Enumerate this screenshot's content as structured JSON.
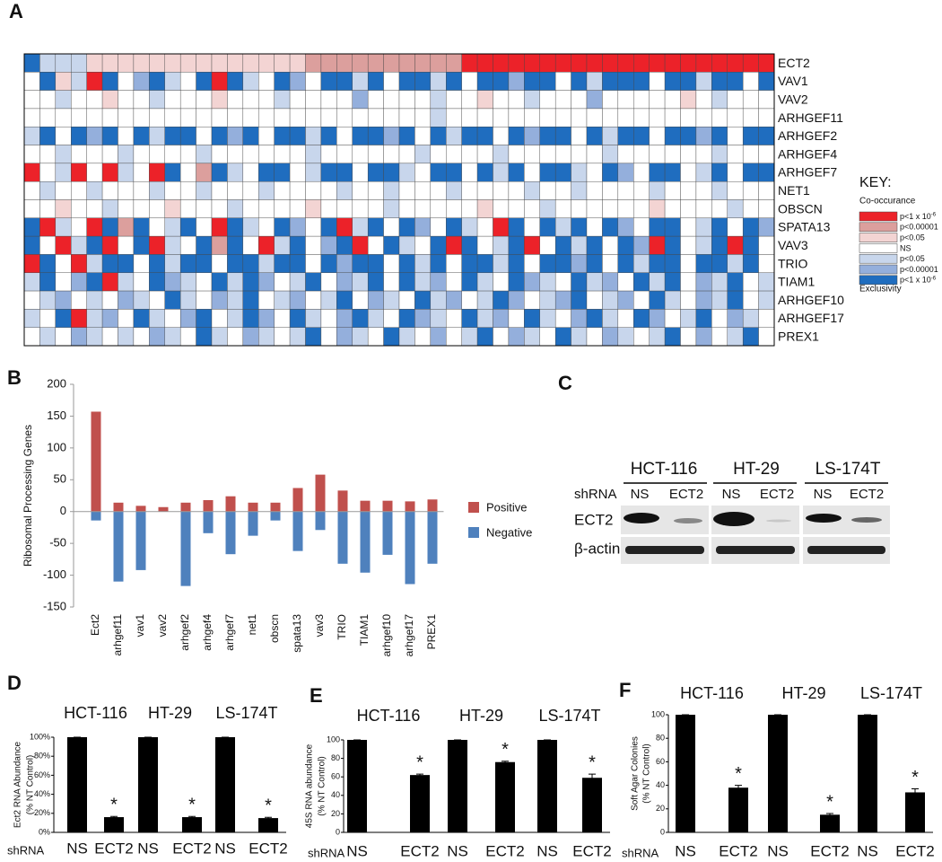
{
  "chart_data": [
    {
      "type": "heatmap",
      "panel_label": "A",
      "rows": [
        "ECT2",
        "VAV1",
        "VAV2",
        "ARHGEF11",
        "ARHGEF2",
        "ARHGEF4",
        "ARHGEF7",
        "NET1",
        "OBSCN",
        "SPATA13",
        "VAV3",
        "TRIO",
        "TIAM1",
        "ARHGEF10",
        "ARHGEF17",
        "PREX1"
      ],
      "values": [
        [
          -3,
          -1,
          -1,
          -1,
          1,
          1,
          1,
          1,
          1,
          1,
          1,
          1,
          1,
          1,
          1,
          1,
          1,
          1,
          2,
          2,
          2,
          2,
          2,
          2,
          2,
          2,
          2,
          2,
          3,
          3,
          3,
          3,
          3,
          3,
          3,
          3,
          3,
          3,
          3,
          3,
          3,
          3,
          3,
          3,
          3,
          3,
          3,
          3
        ],
        [
          0,
          -3,
          1,
          -1,
          3,
          -3,
          0,
          -2,
          -3,
          -1,
          0,
          -3,
          3,
          -3,
          -1,
          0,
          -3,
          -2,
          0,
          -3,
          -3,
          -1,
          -3,
          0,
          -3,
          -3,
          -1,
          -3,
          0,
          -3,
          -3,
          -2,
          -3,
          -3,
          0,
          -3,
          -1,
          -3,
          -3,
          -3,
          0,
          -3,
          -3,
          -1,
          -3,
          -3,
          0,
          -3
        ],
        [
          0,
          0,
          -1,
          0,
          0,
          1,
          0,
          0,
          -1,
          0,
          0,
          0,
          1,
          0,
          0,
          0,
          -1,
          0,
          0,
          0,
          0,
          -2,
          0,
          0,
          0,
          0,
          -1,
          0,
          0,
          1,
          0,
          0,
          -1,
          0,
          0,
          0,
          -2,
          0,
          0,
          0,
          0,
          0,
          1,
          0,
          -1,
          0,
          0,
          0
        ],
        [
          0,
          0,
          0,
          0,
          0,
          0,
          0,
          0,
          0,
          0,
          0,
          0,
          0,
          0,
          0,
          0,
          0,
          0,
          0,
          0,
          0,
          0,
          0,
          0,
          0,
          0,
          -1,
          0,
          0,
          0,
          0,
          0,
          0,
          0,
          0,
          0,
          0,
          0,
          0,
          0,
          0,
          0,
          0,
          0,
          0,
          0,
          0,
          0
        ],
        [
          -1,
          -3,
          0,
          -3,
          -2,
          -3,
          0,
          -3,
          -1,
          -3,
          -3,
          0,
          -3,
          -2,
          -3,
          0,
          -3,
          -3,
          -1,
          -3,
          0,
          -3,
          -3,
          -2,
          -3,
          0,
          -3,
          -1,
          -3,
          -3,
          0,
          -3,
          -2,
          -3,
          -3,
          0,
          -3,
          -1,
          -3,
          -3,
          0,
          -3,
          -3,
          -2,
          -3,
          0,
          -3,
          -3
        ],
        [
          0,
          0,
          -1,
          0,
          0,
          0,
          -1,
          0,
          0,
          0,
          0,
          -1,
          0,
          0,
          0,
          0,
          0,
          0,
          -1,
          0,
          0,
          0,
          0,
          0,
          0,
          -1,
          0,
          0,
          0,
          0,
          -1,
          0,
          0,
          0,
          0,
          0,
          0,
          -1,
          0,
          0,
          0,
          0,
          0,
          0,
          -1,
          0,
          0,
          0
        ],
        [
          3,
          0,
          -1,
          3,
          0,
          3,
          -1,
          0,
          3,
          -3,
          0,
          2,
          -3,
          -1,
          0,
          -3,
          -3,
          0,
          -1,
          -3,
          -3,
          0,
          -3,
          -3,
          -1,
          0,
          -3,
          -3,
          0,
          -3,
          -1,
          -3,
          0,
          -3,
          -3,
          -1,
          0,
          -3,
          -2,
          0,
          -3,
          -3,
          0,
          -1,
          -3,
          0,
          -3,
          -3
        ],
        [
          0,
          -1,
          0,
          0,
          -1,
          0,
          0,
          0,
          -1,
          0,
          0,
          -1,
          0,
          0,
          0,
          -1,
          0,
          0,
          0,
          0,
          -1,
          0,
          0,
          -1,
          0,
          0,
          0,
          -1,
          0,
          0,
          0,
          0,
          -1,
          0,
          0,
          -1,
          0,
          0,
          0,
          0,
          -1,
          0,
          0,
          0,
          -1,
          0,
          0,
          0
        ],
        [
          0,
          0,
          1,
          0,
          0,
          -1,
          0,
          0,
          0,
          1,
          0,
          0,
          0,
          -1,
          0,
          0,
          0,
          0,
          1,
          0,
          0,
          0,
          0,
          -1,
          0,
          0,
          0,
          0,
          0,
          1,
          0,
          0,
          0,
          -1,
          0,
          0,
          0,
          0,
          0,
          0,
          1,
          0,
          0,
          0,
          0,
          -1,
          0,
          0
        ],
        [
          -3,
          3,
          -1,
          0,
          3,
          -3,
          2,
          -3,
          0,
          -1,
          -3,
          0,
          3,
          -3,
          -1,
          0,
          -3,
          -2,
          0,
          -3,
          3,
          -1,
          -3,
          0,
          -3,
          -2,
          0,
          -3,
          -1,
          0,
          3,
          -3,
          0,
          -3,
          -1,
          -3,
          0,
          -3,
          -2,
          0,
          -3,
          -3,
          0,
          -1,
          -3,
          0,
          -3,
          -2
        ],
        [
          -3,
          0,
          3,
          -1,
          -3,
          3,
          0,
          -3,
          3,
          -1,
          0,
          -3,
          2,
          -3,
          0,
          3,
          -1,
          -3,
          0,
          -2,
          -3,
          3,
          0,
          -3,
          -1,
          0,
          -3,
          3,
          -3,
          0,
          -1,
          -3,
          3,
          0,
          -3,
          -1,
          -3,
          0,
          -3,
          -2,
          3,
          -3,
          0,
          -1,
          -3,
          3,
          -3,
          0
        ],
        [
          3,
          -3,
          0,
          3,
          -1,
          -3,
          -3,
          0,
          -3,
          -1,
          -3,
          -3,
          0,
          -3,
          -3,
          -1,
          -3,
          -3,
          0,
          -3,
          -2,
          -3,
          -3,
          0,
          -3,
          -1,
          -3,
          0,
          -3,
          -3,
          -1,
          -3,
          0,
          -3,
          -3,
          -2,
          -3,
          0,
          -3,
          -1,
          -3,
          -3,
          0,
          -3,
          -3,
          -1,
          -3,
          0
        ],
        [
          -1,
          -3,
          0,
          -2,
          -3,
          3,
          -1,
          0,
          -3,
          -2,
          -1,
          0,
          -3,
          -1,
          -3,
          -2,
          0,
          -1,
          -3,
          0,
          -2,
          -1,
          -3,
          0,
          -3,
          -1,
          -2,
          0,
          -3,
          -1,
          0,
          -3,
          -2,
          -1,
          0,
          -3,
          -1,
          -2,
          0,
          -3,
          -1,
          -3,
          0,
          -2,
          -1,
          -3,
          0,
          -1
        ],
        [
          0,
          -1,
          -2,
          0,
          -1,
          0,
          -2,
          -1,
          0,
          -3,
          -1,
          0,
          -2,
          -1,
          -3,
          0,
          -1,
          -2,
          0,
          -1,
          -3,
          0,
          -2,
          -1,
          0,
          -3,
          -1,
          -2,
          0,
          -1,
          -3,
          -2,
          0,
          -1,
          -2,
          -3,
          0,
          -1,
          -2,
          0,
          -3,
          -1,
          0,
          -2,
          -1,
          -3,
          0,
          -1
        ],
        [
          -1,
          0,
          -3,
          3,
          -1,
          -2,
          0,
          -3,
          -1,
          0,
          -2,
          -3,
          0,
          -1,
          -3,
          -2,
          0,
          -3,
          -1,
          0,
          -2,
          -3,
          -1,
          0,
          -3,
          -2,
          -1,
          0,
          -3,
          -1,
          -2,
          0,
          -3,
          -1,
          0,
          -2,
          -3,
          -1,
          0,
          -3,
          -2,
          0,
          -1,
          -3,
          0,
          -2,
          -1,
          0
        ],
        [
          0,
          -1,
          0,
          -2,
          -1,
          0,
          -1,
          0,
          -2,
          -1,
          0,
          -3,
          -1,
          0,
          -2,
          -1,
          0,
          -1,
          -3,
          0,
          -2,
          -1,
          0,
          -3,
          -1,
          0,
          -2,
          0,
          -1,
          -3,
          0,
          -2,
          -1,
          0,
          -3,
          -1,
          0,
          -2,
          -1,
          0,
          -1,
          -3,
          0,
          -2,
          0,
          -1,
          -3,
          0
        ]
      ],
      "key": {
        "title": "KEY:",
        "top_label": "Co-occurance",
        "bottom_label": "Exclusivity",
        "levels": [
          {
            "value": 3,
            "label": "p<1 x 10",
            "sup": "-6",
            "color": "#ec2229"
          },
          {
            "value": 2,
            "label": "p<0.00001",
            "color": "#dc9f9d"
          },
          {
            "value": 1,
            "label": "p<0.05",
            "color": "#f3d4d3"
          },
          {
            "value": 0,
            "label": "NS",
            "color": "#ffffff"
          },
          {
            "value": -1,
            "label": "p<0.05",
            "color": "#c8d6ec"
          },
          {
            "value": -2,
            "label": "p<0.00001",
            "color": "#94afdc"
          },
          {
            "value": -3,
            "label": "p<1 x 10",
            "sup": "-6",
            "color": "#1f6dbf"
          }
        ]
      }
    },
    {
      "type": "bar",
      "panel_label": "B",
      "ylabel": "Ribosomal Processing Genes",
      "categories": [
        "Ect2",
        "arhgef11",
        "vav1",
        "vav2",
        "arhgef2",
        "arhgef4",
        "arhgef7",
        "net1",
        "obscn",
        "spata13",
        "vav3",
        "TRIO",
        "TIAM1",
        "arhgef10",
        "arhgef17",
        "PREX1"
      ],
      "series": [
        {
          "name": "Positive",
          "color": "#c0504d",
          "values": [
            157,
            14,
            9,
            7,
            14,
            18,
            24,
            14,
            14,
            37,
            58,
            33,
            17,
            17,
            16,
            19
          ]
        },
        {
          "name": "Negative",
          "color": "#4f81bd",
          "values": [
            -14,
            -110,
            -92,
            0,
            -117,
            -34,
            -67,
            -38,
            -14,
            -62,
            -29,
            -82,
            -96,
            -68,
            -114,
            -82
          ]
        }
      ],
      "ylim": [
        -150,
        200
      ],
      "yticks": [
        -150,
        -100,
        -50,
        0,
        50,
        100,
        150,
        200
      ]
    },
    {
      "type": "bar",
      "panel_label": "D",
      "ylabel": [
        "Ect2 RNA Abundance",
        "(% NT Control)"
      ],
      "xlabel": "shRNA",
      "groups": [
        "HCT-116",
        "HT-29",
        "LS-174T"
      ],
      "categories": [
        "NS",
        "ECT2",
        "NS",
        "ECT2",
        "NS",
        "ECT2"
      ],
      "values": [
        100,
        16,
        100,
        16,
        100,
        15
      ],
      "errors": [
        0,
        0.8,
        0,
        0.8,
        0,
        0.8
      ],
      "annotations": [
        null,
        "*",
        null,
        "*",
        null,
        "*"
      ],
      "color": "#000000",
      "ylim": [
        0,
        100
      ],
      "yticks": [
        {
          "value": 0,
          "label": "0%"
        },
        {
          "value": 20,
          "label": "20%"
        },
        {
          "value": 40,
          "label": "40%"
        },
        {
          "value": 60,
          "label": "60%"
        },
        {
          "value": 80,
          "label": "80%"
        },
        {
          "value": 100,
          "label": "100%"
        }
      ]
    },
    {
      "type": "bar",
      "panel_label": "E",
      "ylabel": [
        "45S RNA abundance",
        "(% NT Control)"
      ],
      "xlabel": "shRNA",
      "groups": [
        "HCT-116",
        "HT-29",
        "LS-174T"
      ],
      "categories": [
        "NS",
        "ECT2",
        "NS",
        "ECT2",
        "NS",
        "ECT2"
      ],
      "values": [
        100,
        62,
        100,
        76,
        100,
        59
      ],
      "errors": [
        0,
        1,
        0,
        1,
        0,
        4
      ],
      "annotations": [
        null,
        "*",
        null,
        "*",
        null,
        "*"
      ],
      "color": "#000000",
      "ylim": [
        0,
        100
      ],
      "yticks": [
        0,
        20,
        40,
        60,
        80,
        100
      ]
    },
    {
      "type": "bar",
      "panel_label": "F",
      "ylabel": [
        "Soft Agar Colonies",
        "(% NT Control)"
      ],
      "xlabel": "shRNA",
      "groups": [
        "HCT-116",
        "HT-29",
        "LS-174T"
      ],
      "categories": [
        "NS",
        "ECT2",
        "NS",
        "ECT2",
        "NS",
        "ECT2"
      ],
      "values": [
        100,
        38,
        100,
        15,
        100,
        34
      ],
      "errors": [
        0,
        2,
        0,
        1,
        0,
        3
      ],
      "annotations": [
        null,
        "*",
        null,
        "*",
        null,
        "*"
      ],
      "color": "#000000",
      "ylim": [
        0,
        100
      ],
      "yticks": [
        0,
        20,
        40,
        60,
        80,
        100
      ]
    }
  ],
  "blot": {
    "panel_label": "C",
    "cell_lines": [
      "HCT-116",
      "HT-29",
      "LS-174T"
    ],
    "row_header": "shRNA",
    "lanes": [
      "NS",
      "ECT2",
      "NS",
      "ECT2",
      "NS",
      "ECT2"
    ],
    "proteins": [
      "ECT2",
      "β-actin"
    ]
  }
}
